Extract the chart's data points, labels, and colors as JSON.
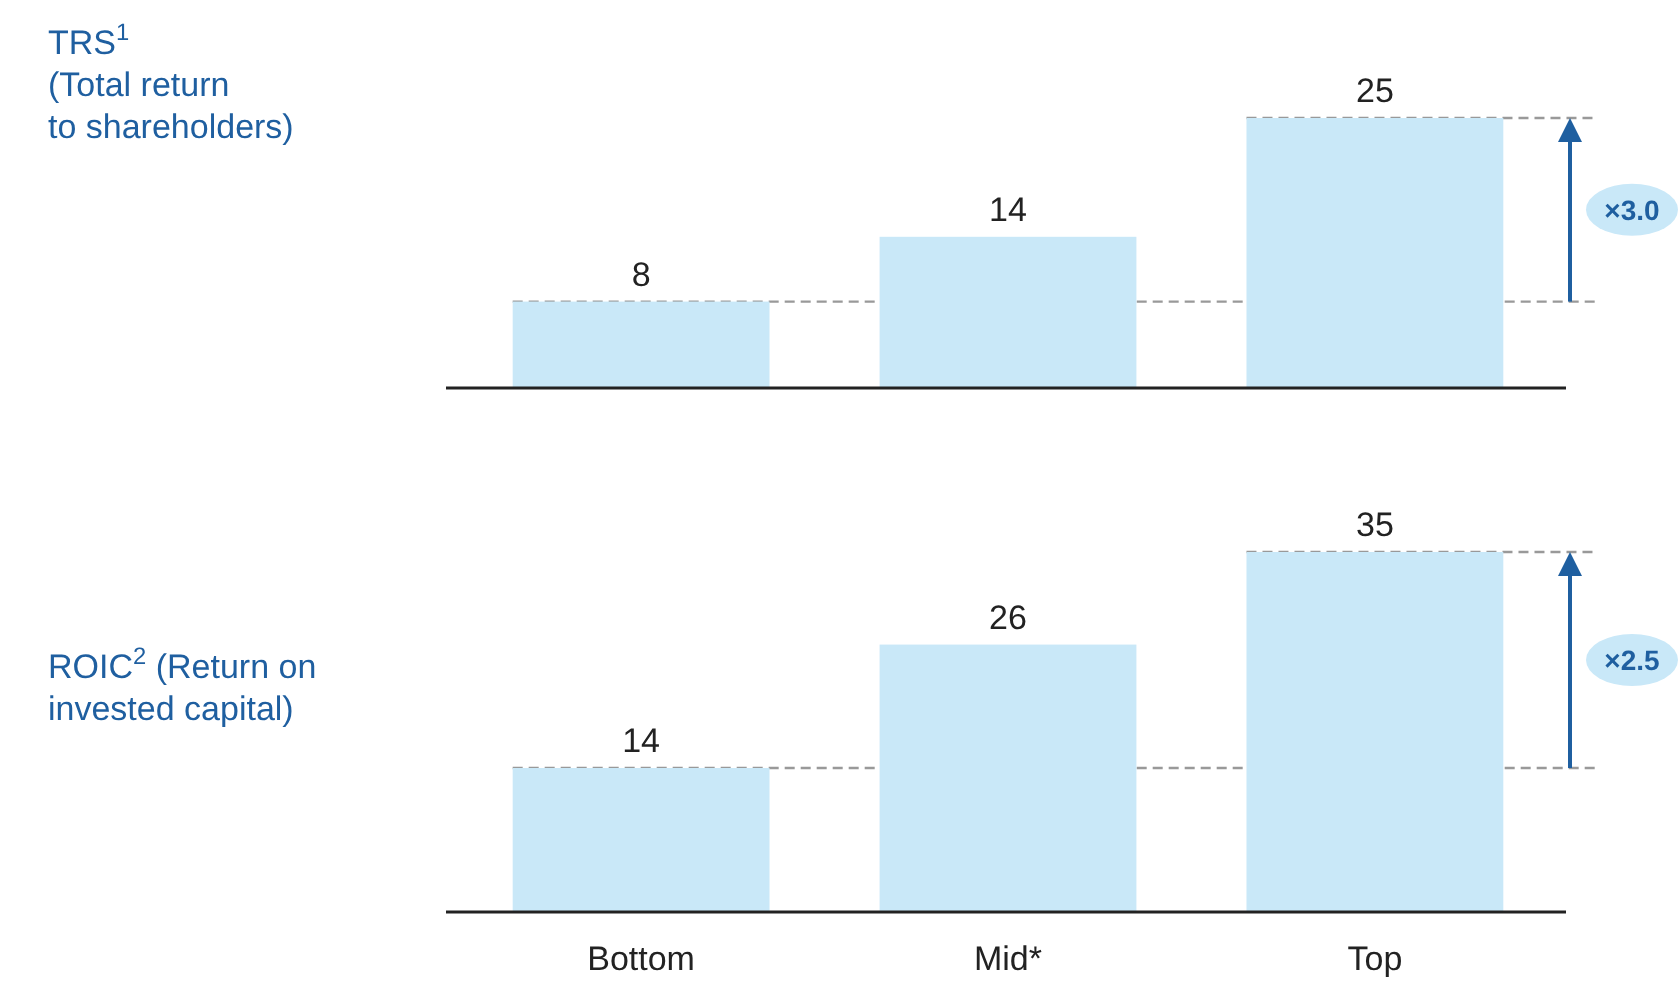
{
  "chart_data": [
    {
      "type": "bar",
      "title": "TRS$^{1}$\n(Total return\nto shareholders)",
      "categories": [
        null,
        null,
        null
      ],
      "values": [
        8,
        14,
        25
      ],
      "color": "#c9e8f8",
      "data_labels": true,
      "tick_labels": false,
      "ref_lines": [
        {
          "axis": "y",
          "value": 8,
          "color": "#999999",
          "line_style": "dashed"
        },
        {
          "axis": "y",
          "value": 25,
          "color": "#999999",
          "line_style": "dashed"
        }
      ],
      "annotations": [
        "×3.0"
      ]
    },
    {
      "type": "bar",
      "title": "ROIC$^{2}$ (Return on\ninvested capital)",
      "categories": [
        "Bottom",
        "Mid*",
        "Top"
      ],
      "values": [
        14,
        26,
        35
      ],
      "color": "#c9e8f8",
      "data_labels": true,
      "tick_labels": "x",
      "ref_lines": [
        {
          "axis": "y",
          "value": 14,
          "color": "#999999",
          "line_style": "dashed"
        },
        {
          "axis": "y",
          "value": 35,
          "color": "#999999",
          "line_style": "dashed"
        }
      ],
      "annotations": [
        "×2.5"
      ]
    }
  ]
}
